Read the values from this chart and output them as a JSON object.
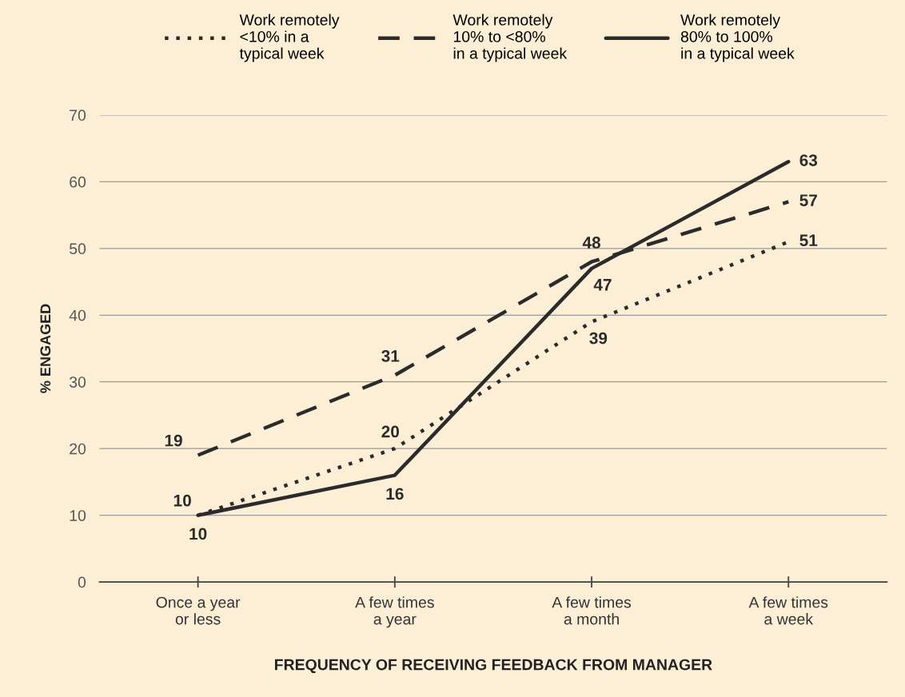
{
  "chart_data": {
    "type": "line",
    "xlabel": "FREQUENCY OF RECEIVING FEEDBACK FROM MANAGER",
    "ylabel": "% ENGAGED",
    "categories": [
      "Once a year\nor less",
      "A few times\na year",
      "A few times\na month",
      "A few times\na week"
    ],
    "series": [
      {
        "name": "Work remotely\n<10% in a\ntypical week",
        "color": "#2b2b2b",
        "line_style": "dotted",
        "values": [
          10,
          20,
          39,
          51
        ]
      },
      {
        "name": "Work remotely\n10% to <80%\nin a typical week",
        "color": "#2b2b2b",
        "line_style": "dashed",
        "values": [
          19,
          31,
          48,
          57
        ]
      },
      {
        "name": "Work remotely\n80% to 100%\nin a typical week",
        "color": "#2b2b2b",
        "line_style": "solid",
        "values": [
          10,
          16,
          47,
          63
        ]
      }
    ],
    "ylim": [
      0,
      70
    ],
    "yticks": [
      0,
      10,
      20,
      30,
      40,
      50,
      60,
      70
    ],
    "grid": "y",
    "legend": "top",
    "marker": "none",
    "data_labels": true
  }
}
